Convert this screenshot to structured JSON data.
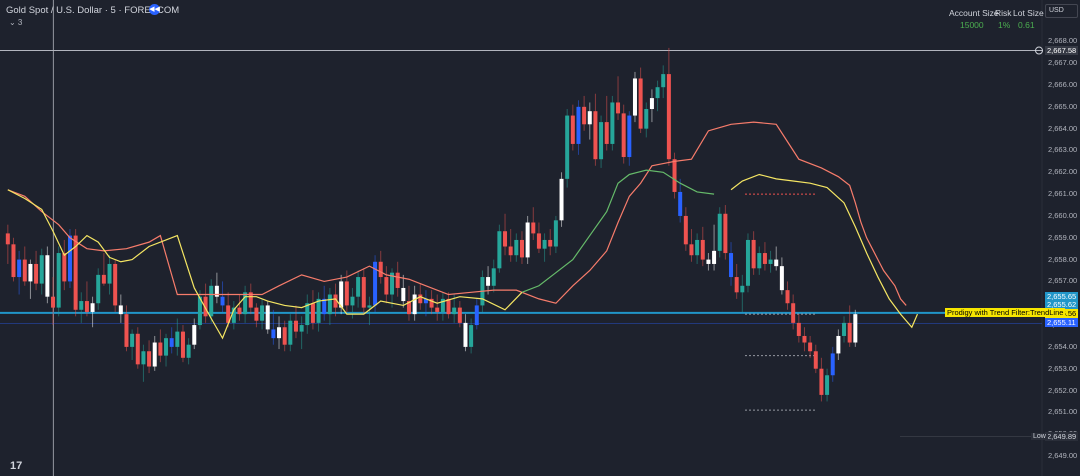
{
  "header": {
    "symbol_title": "Gold Spot / U.S. Dollar · 5 · FOREXCOM",
    "badge_icon": "rewind-icon",
    "indicator_count": "⌄ 3",
    "account": {
      "labels": [
        "Account Size",
        "Risk",
        "Lot Size"
      ],
      "values": [
        "15000",
        "1%",
        "0.61"
      ]
    },
    "currency": "USD"
  },
  "axis": {
    "ticks": [
      "2,668.00",
      "2,667.00",
      "2,666.00",
      "2,665.00",
      "2,664.00",
      "2,663.00",
      "2,662.00",
      "2,661.00",
      "2,660.00",
      "2,659.00",
      "2,658.00",
      "2,657.00",
      "2,656.00",
      "2,655.00",
      "2,654.00",
      "2,653.00",
      "2,652.00",
      "2,651.00",
      "2,650.00",
      "2,649.00"
    ]
  },
  "price_labels": {
    "crosshair": "2,667.58",
    "p1": "2,655.65",
    "p2": "2,655.62",
    "p3": "2,655.56",
    "p4": "2,655.11",
    "low_label": "Low",
    "low": "2,649.89"
  },
  "trendline_label": "Prodigy with Trend Filter:TrendLine",
  "colors": {
    "bull": "#26a69a",
    "bear": "#ef5350",
    "blue": "#2962ff",
    "white": "#ffffff",
    "stop": "#f77c6b",
    "trend_yellow": "#f5e663",
    "trend_green": "#66bb6a",
    "hline": "#2196c9"
  },
  "chart_data": {
    "type": "candlestick",
    "ylim": [
      2649,
      2668.2
    ],
    "crosshair_price": 2667.58,
    "trendline_price": 2655.56,
    "candles": [
      [
        2659.2,
        2659.6,
        2657.8,
        2658.7
      ],
      [
        2658.7,
        2659.0,
        2657.0,
        2657.2
      ],
      [
        2657.2,
        2658.4,
        2656.4,
        2658.0
      ],
      [
        2658.0,
        2658.6,
        2656.8,
        2657.0
      ],
      [
        2657.0,
        2658.0,
        2656.2,
        2657.8
      ],
      [
        2657.8,
        2658.4,
        2656.6,
        2656.9
      ],
      [
        2656.9,
        2658.5,
        2656.4,
        2658.2
      ],
      [
        2658.2,
        2658.6,
        2656.0,
        2656.3
      ],
      [
        2656.3,
        2657.2,
        2655.0,
        2655.8
      ],
      [
        2655.8,
        2658.6,
        2655.4,
        2658.3
      ],
      [
        2658.3,
        2658.9,
        2656.6,
        2657.0
      ],
      [
        2657.0,
        2659.4,
        2656.7,
        2659.1
      ],
      [
        2659.1,
        2659.4,
        2655.4,
        2655.7
      ],
      [
        2655.7,
        2656.5,
        2655.1,
        2656.1
      ],
      [
        2656.1,
        2657.0,
        2655.4,
        2655.6
      ],
      [
        2655.6,
        2656.3,
        2654.9,
        2656.0
      ],
      [
        2656.0,
        2657.6,
        2655.7,
        2657.3
      ],
      [
        2657.3,
        2658.3,
        2656.8,
        2656.9
      ],
      [
        2656.9,
        2658.2,
        2656.4,
        2657.8
      ],
      [
        2657.8,
        2658.0,
        2655.6,
        2655.9
      ],
      [
        2655.9,
        2656.4,
        2655.1,
        2655.5
      ],
      [
        2655.5,
        2655.9,
        2653.8,
        2654.0
      ],
      [
        2654.0,
        2654.8,
        2653.4,
        2654.6
      ],
      [
        2654.6,
        2654.9,
        2653.0,
        2653.2
      ],
      [
        2653.2,
        2654.1,
        2652.4,
        2653.8
      ],
      [
        2653.8,
        2654.3,
        2652.8,
        2653.1
      ],
      [
        2653.1,
        2654.5,
        2652.9,
        2654.2
      ],
      [
        2654.2,
        2654.8,
        2653.3,
        2653.6
      ],
      [
        2653.6,
        2654.6,
        2653.1,
        2654.4
      ],
      [
        2654.4,
        2654.9,
        2653.7,
        2654.0
      ],
      [
        2654.0,
        2655.3,
        2653.6,
        2654.7
      ],
      [
        2654.7,
        2655.0,
        2653.3,
        2653.5
      ],
      [
        2653.5,
        2654.4,
        2653.2,
        2654.1
      ],
      [
        2654.1,
        2655.3,
        2653.9,
        2655.0
      ],
      [
        2655.0,
        2656.6,
        2654.8,
        2656.3
      ],
      [
        2656.3,
        2656.9,
        2655.1,
        2655.4
      ],
      [
        2655.4,
        2657.1,
        2655.1,
        2656.8
      ],
      [
        2656.8,
        2657.4,
        2656.0,
        2656.3
      ],
      [
        2656.3,
        2657.0,
        2655.6,
        2655.9
      ],
      [
        2655.9,
        2656.5,
        2654.9,
        2655.1
      ],
      [
        2655.1,
        2656.1,
        2654.8,
        2655.8
      ],
      [
        2655.8,
        2656.4,
        2655.2,
        2655.5
      ],
      [
        2655.5,
        2656.8,
        2655.1,
        2656.5
      ],
      [
        2656.5,
        2656.9,
        2655.5,
        2655.8
      ],
      [
        2655.8,
        2656.0,
        2654.9,
        2655.2
      ],
      [
        2655.2,
        2656.2,
        2654.8,
        2655.9
      ],
      [
        2655.9,
        2656.1,
        2654.6,
        2654.8
      ],
      [
        2654.8,
        2655.7,
        2654.1,
        2654.4
      ],
      [
        2654.4,
        2655.4,
        2653.9,
        2654.9
      ],
      [
        2654.9,
        2655.2,
        2653.8,
        2654.1
      ],
      [
        2654.1,
        2655.5,
        2653.8,
        2655.2
      ],
      [
        2655.2,
        2655.9,
        2654.4,
        2654.7
      ],
      [
        2654.7,
        2655.4,
        2653.9,
        2655.0
      ],
      [
        2655.0,
        2656.4,
        2654.6,
        2656.0
      ],
      [
        2656.0,
        2656.6,
        2654.8,
        2655.1
      ],
      [
        2655.1,
        2656.5,
        2654.7,
        2656.2
      ],
      [
        2656.2,
        2656.8,
        2655.2,
        2655.5
      ],
      [
        2655.5,
        2656.7,
        2655.0,
        2656.4
      ],
      [
        2656.4,
        2656.9,
        2655.4,
        2655.8
      ],
      [
        2655.8,
        2657.3,
        2655.5,
        2657.0
      ],
      [
        2657.0,
        2657.5,
        2655.6,
        2655.9
      ],
      [
        2655.9,
        2656.7,
        2655.3,
        2656.3
      ],
      [
        2656.3,
        2657.5,
        2655.8,
        2657.2
      ],
      [
        2657.2,
        2657.6,
        2655.5,
        2655.8
      ],
      [
        2655.8,
        2656.3,
        2655.0,
        2655.9
      ],
      [
        2655.9,
        2658.2,
        2655.6,
        2657.9
      ],
      [
        2657.9,
        2658.4,
        2656.9,
        2657.2
      ],
      [
        2657.2,
        2657.7,
        2656.0,
        2656.4
      ],
      [
        2656.4,
        2657.6,
        2655.8,
        2657.4
      ],
      [
        2657.4,
        2657.9,
        2656.3,
        2656.7
      ],
      [
        2656.7,
        2657.3,
        2655.8,
        2656.1
      ],
      [
        2656.1,
        2656.8,
        2655.2,
        2655.5
      ],
      [
        2655.5,
        2656.8,
        2655.2,
        2656.4
      ],
      [
        2656.4,
        2656.9,
        2655.7,
        2656.0
      ],
      [
        2656.0,
        2656.6,
        2655.4,
        2656.2
      ],
      [
        2656.2,
        2656.6,
        2655.5,
        2655.8
      ],
      [
        2655.8,
        2656.4,
        2655.2,
        2655.6
      ],
      [
        2655.6,
        2656.5,
        2655.2,
        2656.2
      ],
      [
        2656.2,
        2656.5,
        2655.3,
        2655.5
      ],
      [
        2655.5,
        2656.4,
        2655.1,
        2655.8
      ],
      [
        2655.8,
        2656.1,
        2654.9,
        2655.1
      ],
      [
        2655.1,
        2655.5,
        2653.8,
        2654.0
      ],
      [
        2654.0,
        2655.3,
        2653.7,
        2655.0
      ],
      [
        2655.0,
        2656.2,
        2654.8,
        2655.9
      ],
      [
        2655.9,
        2657.5,
        2655.6,
        2657.2
      ],
      [
        2657.2,
        2657.7,
        2656.4,
        2656.8
      ],
      [
        2656.8,
        2658.0,
        2656.5,
        2657.6
      ],
      [
        2657.6,
        2659.6,
        2657.4,
        2659.3
      ],
      [
        2659.3,
        2660.1,
        2658.2,
        2658.6
      ],
      [
        2658.6,
        2659.4,
        2657.9,
        2658.2
      ],
      [
        2658.2,
        2659.2,
        2657.9,
        2658.9
      ],
      [
        2658.9,
        2659.3,
        2657.8,
        2658.1
      ],
      [
        2658.1,
        2660.0,
        2657.8,
        2659.7
      ],
      [
        2659.7,
        2660.4,
        2658.9,
        2659.2
      ],
      [
        2659.2,
        2659.7,
        2658.3,
        2658.5
      ],
      [
        2658.5,
        2659.2,
        2657.9,
        2658.9
      ],
      [
        2658.9,
        2659.4,
        2658.2,
        2658.6
      ],
      [
        2658.6,
        2660.0,
        2658.3,
        2659.8
      ],
      [
        2659.8,
        2662.0,
        2659.5,
        2661.7
      ],
      [
        2661.7,
        2664.9,
        2661.3,
        2664.6
      ],
      [
        2664.6,
        2665.1,
        2663.0,
        2663.3
      ],
      [
        2663.3,
        2665.3,
        2662.8,
        2665.0
      ],
      [
        2665.0,
        2665.5,
        2663.9,
        2664.2
      ],
      [
        2664.2,
        2665.2,
        2663.5,
        2664.8
      ],
      [
        2664.8,
        2665.6,
        2662.3,
        2662.6
      ],
      [
        2662.6,
        2664.6,
        2662.2,
        2664.3
      ],
      [
        2664.3,
        2665.5,
        2663.0,
        2663.3
      ],
      [
        2663.3,
        2665.5,
        2663.0,
        2665.2
      ],
      [
        2665.2,
        2666.4,
        2664.4,
        2664.7
      ],
      [
        2664.7,
        2665.1,
        2662.4,
        2662.7
      ],
      [
        2662.7,
        2664.8,
        2662.3,
        2664.6
      ],
      [
        2664.6,
        2666.6,
        2664.3,
        2666.3
      ],
      [
        2666.3,
        2666.8,
        2663.8,
        2664.0
      ],
      [
        2664.0,
        2665.2,
        2663.6,
        2664.9
      ],
      [
        2664.9,
        2665.8,
        2664.3,
        2665.4
      ],
      [
        2665.4,
        2666.2,
        2664.8,
        2665.9
      ],
      [
        2665.9,
        2666.9,
        2665.4,
        2666.5
      ],
      [
        2666.5,
        2667.7,
        2662.3,
        2662.6
      ],
      [
        2662.6,
        2662.9,
        2660.8,
        2661.1
      ],
      [
        2661.1,
        2661.7,
        2659.7,
        2660.0
      ],
      [
        2660.0,
        2660.4,
        2658.4,
        2658.7
      ],
      [
        2658.7,
        2659.4,
        2657.9,
        2658.2
      ],
      [
        2658.2,
        2659.2,
        2657.8,
        2658.9
      ],
      [
        2658.9,
        2659.5,
        2657.7,
        2658.0
      ],
      [
        2658.0,
        2658.3,
        2657.5,
        2657.8
      ],
      [
        2657.8,
        2659.6,
        2657.5,
        2658.4
      ],
      [
        2658.4,
        2660.4,
        2658.1,
        2660.1
      ],
      [
        2660.1,
        2660.5,
        2658.0,
        2658.3
      ],
      [
        2658.3,
        2658.8,
        2656.8,
        2657.2
      ],
      [
        2657.2,
        2657.8,
        2656.2,
        2656.5
      ],
      [
        2656.5,
        2657.3,
        2655.6,
        2656.8
      ],
      [
        2656.8,
        2659.2,
        2656.5,
        2658.9
      ],
      [
        2658.9,
        2659.3,
        2657.3,
        2657.6
      ],
      [
        2657.6,
        2658.6,
        2657.3,
        2658.3
      ],
      [
        2658.3,
        2658.8,
        2657.5,
        2657.8
      ],
      [
        2657.8,
        2658.4,
        2657.4,
        2658.0
      ],
      [
        2658.0,
        2658.6,
        2657.5,
        2657.7
      ],
      [
        2657.7,
        2658.1,
        2656.4,
        2656.6
      ],
      [
        2656.6,
        2657.0,
        2655.7,
        2656.0
      ],
      [
        2656.0,
        2656.4,
        2654.8,
        2655.1
      ],
      [
        2655.1,
        2655.5,
        2654.2,
        2654.5
      ],
      [
        2654.5,
        2654.9,
        2653.8,
        2654.2
      ],
      [
        2654.2,
        2654.5,
        2653.5,
        2653.8
      ],
      [
        2653.8,
        2654.1,
        2652.8,
        2653.0
      ],
      [
        2653.0,
        2653.5,
        2651.5,
        2651.8
      ],
      [
        2651.8,
        2653.0,
        2651.5,
        2652.7
      ],
      [
        2652.7,
        2654.0,
        2652.4,
        2653.7
      ],
      [
        2653.7,
        2654.8,
        2653.4,
        2654.5
      ],
      [
        2654.5,
        2655.4,
        2654.2,
        2655.1
      ],
      [
        2655.1,
        2655.9,
        2654.0,
        2654.2
      ],
      [
        2654.2,
        2655.7,
        2654.0,
        2655.5
      ]
    ],
    "stop_line": [
      [
        0,
        2661.2
      ],
      [
        3,
        2660.9
      ],
      [
        6,
        2660.2
      ],
      [
        9,
        2659.6
      ],
      [
        11,
        2659.0
      ],
      [
        14,
        2658.5
      ],
      [
        17,
        2658.4
      ],
      [
        21,
        2658.5
      ],
      [
        25,
        2658.8
      ],
      [
        27,
        2659.1
      ],
      [
        30,
        2656.4
      ],
      [
        45,
        2656.4
      ],
      [
        48,
        2656.8
      ],
      [
        52,
        2657.3
      ],
      [
        56,
        2657.0
      ],
      [
        60,
        2657.2
      ],
      [
        64,
        2657.7
      ],
      [
        67,
        2657.3
      ],
      [
        71,
        2657.1
      ],
      [
        74,
        2656.8
      ],
      [
        78,
        2656.4
      ],
      [
        82,
        2656.5
      ],
      [
        86,
        2656.6
      ],
      [
        90,
        2656.6
      ],
      [
        94,
        2656.2
      ],
      [
        97,
        2656.0
      ],
      [
        100,
        2656.8
      ],
      [
        103,
        2657.5
      ],
      [
        106,
        2658.4
      ],
      [
        108,
        2659.7
      ],
      [
        110,
        2660.9
      ],
      [
        112,
        2661.5
      ],
      [
        114,
        2662.3
      ],
      [
        116,
        2662.4
      ],
      [
        118,
        2662.5
      ],
      [
        121,
        2662.6
      ],
      [
        124,
        2663.9
      ],
      [
        128,
        2664.2
      ],
      [
        132,
        2664.3
      ],
      [
        136,
        2664.2
      ],
      [
        138,
        2663.4
      ],
      [
        140,
        2662.6
      ],
      [
        144,
        2662.2
      ],
      [
        147,
        2661.8
      ],
      [
        149,
        2661.4
      ],
      [
        150,
        2660.6
      ],
      [
        151,
        2659.7
      ],
      [
        152,
        2659.0
      ],
      [
        153,
        2658.5
      ],
      [
        154,
        2658.0
      ],
      [
        155,
        2657.5
      ],
      [
        157,
        2656.8
      ],
      [
        158,
        2656.2
      ],
      [
        159,
        2655.9
      ]
    ],
    "trend_line": [
      [
        0,
        2661.2
      ],
      [
        3,
        2660.8
      ],
      [
        6,
        2660.3
      ],
      [
        8,
        2659.3
      ],
      [
        10,
        2658.2
      ],
      [
        12,
        2658.6
      ],
      [
        14,
        2659.1
      ],
      [
        16,
        2658.8
      ],
      [
        18,
        2658.1
      ],
      [
        20,
        2657.9
      ],
      [
        22,
        2658.0
      ],
      [
        25,
        2658.6
      ],
      [
        28,
        2658.9
      ],
      [
        30,
        2659.1
      ],
      [
        33,
        2656.7
      ],
      [
        36,
        2655.3
      ],
      [
        38,
        2654.4
      ],
      [
        40,
        2655.7
      ],
      [
        42,
        2656.3
      ],
      [
        44,
        2656.3
      ],
      [
        46,
        2656.1
      ],
      [
        49,
        2655.9
      ],
      [
        52,
        2655.8
      ],
      [
        55,
        2656.1
      ],
      [
        58,
        2656.2
      ],
      [
        60,
        2655.5
      ],
      [
        63,
        2655.5
      ],
      [
        66,
        2656.1
      ],
      [
        70,
        2655.9
      ],
      [
        73,
        2656.3
      ],
      [
        76,
        2656.0
      ],
      [
        80,
        2656.3
      ],
      [
        84,
        2656.2
      ],
      [
        88,
        2655.7
      ],
      [
        91,
        2656.5
      ],
      [
        94,
        2656.8
      ],
      [
        97,
        2657.4
      ],
      [
        100,
        2658.0
      ],
      [
        103,
        2659.1
      ],
      [
        106,
        2660.2
      ],
      [
        108,
        2661.5
      ],
      [
        110,
        2661.9
      ],
      [
        113,
        2662.1
      ],
      [
        116,
        2662.0
      ],
      [
        119,
        2661.5
      ],
      [
        122,
        2661.1
      ],
      [
        125,
        2661.0
      ],
      [
        128,
        2661.2
      ],
      [
        130,
        2661.6
      ],
      [
        133,
        2661.9
      ],
      [
        136,
        2661.7
      ],
      [
        139,
        2661.6
      ],
      [
        142,
        2661.5
      ],
      [
        145,
        2661.3
      ],
      [
        148,
        2660.6
      ],
      [
        150,
        2659.5
      ],
      [
        152,
        2658.3
      ],
      [
        154,
        2657.2
      ],
      [
        156,
        2656.2
      ],
      [
        158,
        2655.5
      ],
      [
        160,
        2654.9
      ],
      [
        161,
        2655.5
      ]
    ],
    "trend_green_range": [
      91,
      126
    ],
    "x_crosshair_index": 7
  }
}
